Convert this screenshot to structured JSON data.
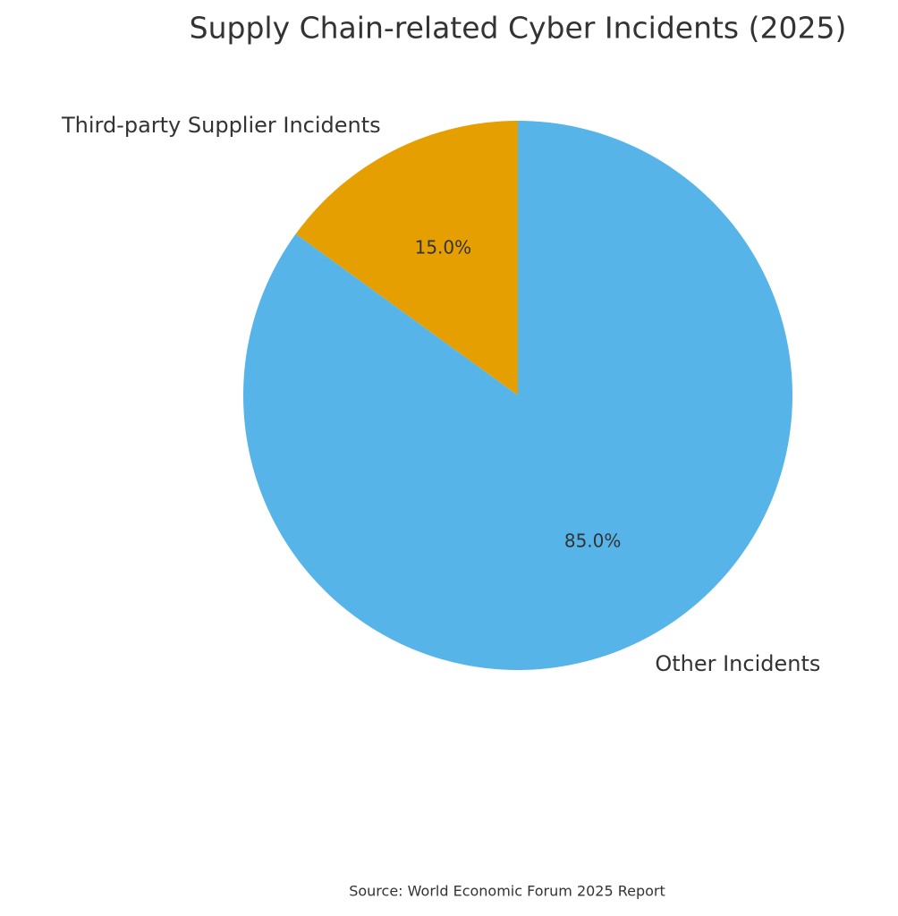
{
  "chart_data": {
    "type": "pie",
    "title": "Supply Chain-related Cyber Incidents (2025)",
    "categories": [
      "Third-party Supplier Incidents",
      "Other Incidents"
    ],
    "values": [
      15,
      85
    ],
    "value_labels": [
      "15.0%",
      "85.0%"
    ],
    "colors": [
      "#E69F00",
      "#56B4E9"
    ],
    "source": "Source: World Economic Forum 2025 Report"
  }
}
